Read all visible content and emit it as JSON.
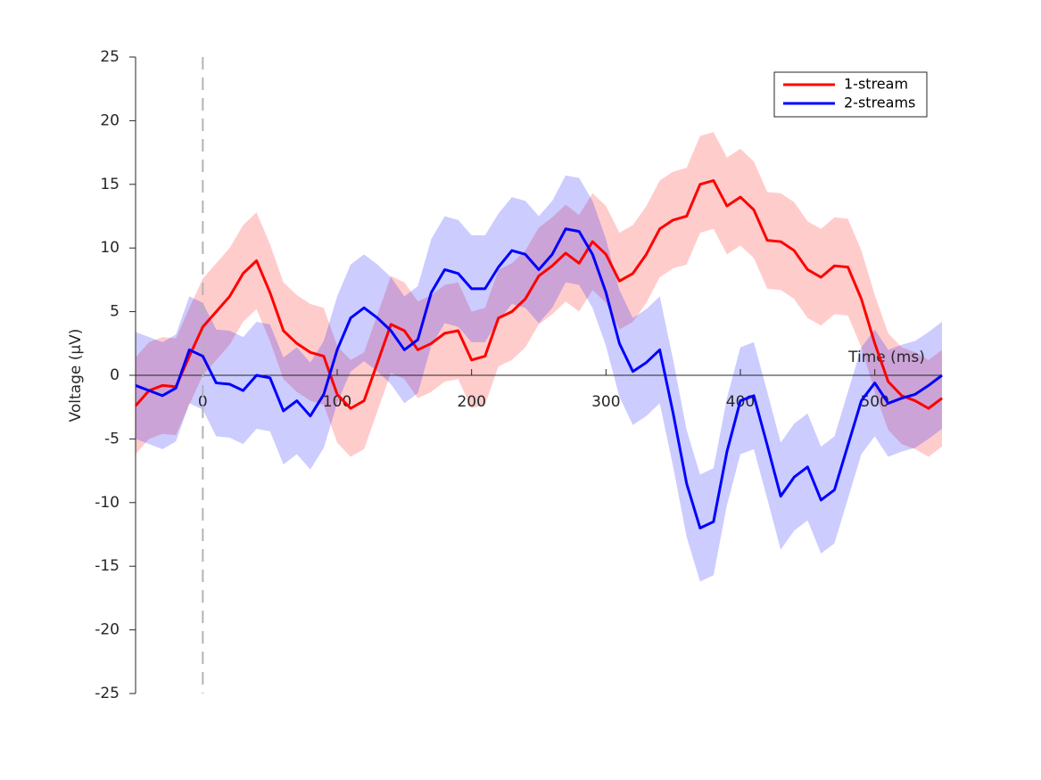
{
  "chart_data": {
    "type": "line",
    "xlabel": "Time (ms)",
    "ylabel": "Voltage (µV)",
    "x": [
      -50,
      -40,
      -30,
      -20,
      -10,
      0,
      10,
      20,
      30,
      40,
      50,
      60,
      70,
      80,
      90,
      100,
      110,
      120,
      130,
      140,
      150,
      160,
      170,
      180,
      190,
      200,
      210,
      220,
      230,
      240,
      250,
      260,
      270,
      280,
      290,
      300,
      310,
      320,
      330,
      340,
      350,
      360,
      370,
      380,
      390,
      400,
      410,
      420,
      430,
      440,
      450,
      460,
      470,
      480,
      490,
      500,
      510,
      520,
      530,
      540,
      550
    ],
    "series": [
      {
        "name": "1-stream",
        "color": "#ff0000",
        "band_color": "#ff0000",
        "error": 3.8,
        "values": [
          -2.4,
          -1.2,
          -0.8,
          -0.9,
          1.5,
          3.8,
          5.0,
          6.2,
          8.0,
          9.0,
          6.5,
          3.5,
          2.5,
          1.8,
          1.5,
          -1.5,
          -2.6,
          -2.0,
          1.0,
          4.0,
          3.5,
          2.0,
          2.5,
          3.3,
          3.5,
          1.2,
          1.5,
          4.5,
          5.0,
          6.0,
          7.8,
          8.6,
          9.6,
          8.8,
          10.5,
          9.5,
          7.4,
          8.0,
          9.5,
          11.5,
          12.2,
          12.5,
          15.0,
          15.3,
          13.3,
          14.0,
          13.0,
          10.6,
          10.5,
          9.8,
          8.3,
          7.7,
          8.6,
          8.5,
          6.0,
          2.5,
          -0.5,
          -1.6,
          -2.0,
          -2.6,
          -1.8
        ]
      },
      {
        "name": "2-streams",
        "color": "#0000ff",
        "band_color": "#0000ff",
        "error": 4.2,
        "values": [
          -0.8,
          -1.2,
          -1.6,
          -1.0,
          2.0,
          1.5,
          -0.6,
          -0.7,
          -1.2,
          0.0,
          -0.2,
          -2.8,
          -2.0,
          -3.2,
          -1.5,
          2.0,
          4.5,
          5.3,
          4.5,
          3.5,
          2.0,
          2.8,
          6.5,
          8.3,
          8.0,
          6.8,
          6.8,
          8.5,
          9.8,
          9.5,
          8.3,
          9.5,
          11.5,
          11.3,
          9.5,
          6.5,
          2.5,
          0.3,
          1.0,
          2.0,
          -3.0,
          -8.5,
          -12.0,
          -11.5,
          -6.0,
          -2.0,
          -1.6,
          -5.5,
          -9.5,
          -8.0,
          -7.2,
          -9.8,
          -9.0,
          -5.5,
          -2.0,
          -0.6,
          -2.2,
          -1.8,
          -1.5,
          -0.8,
          0.0
        ]
      }
    ],
    "xlim": [
      -50,
      550
    ],
    "xticks": [
      0,
      100,
      200,
      300,
      400,
      500
    ],
    "ylim": [
      -25,
      25
    ],
    "yticks": [
      -25,
      -20,
      -15,
      -10,
      -5,
      0,
      5,
      10,
      15,
      20,
      25
    ],
    "vline_x": 0,
    "legend": "upper-right",
    "grid": false
  }
}
